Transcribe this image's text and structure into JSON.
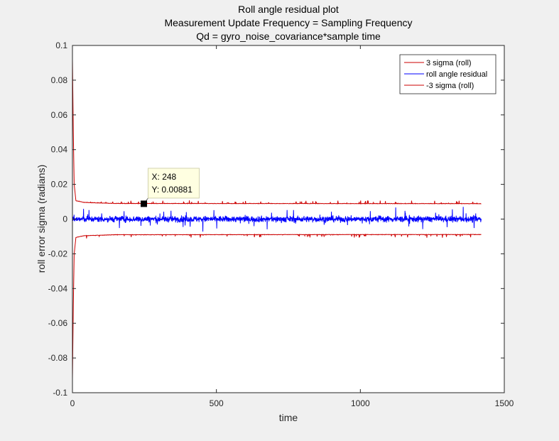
{
  "chart_data": {
    "type": "line",
    "title": [
      "Roll angle residual plot",
      "Measurement Update Frequency = Sampling Frequency",
      "Qd = gyro_noise_covariance*sample time"
    ],
    "xlabel": "time",
    "ylabel": "roll error sigma (radians)",
    "xlim": [
      0,
      1500
    ],
    "ylim": [
      -0.1,
      0.1
    ],
    "xticks": [
      0,
      500,
      1000,
      1500
    ],
    "xtick_labels": [
      "0",
      "500",
      "1000",
      "1500"
    ],
    "yticks": [
      -0.1,
      -0.08,
      -0.06,
      -0.04,
      -0.02,
      0,
      0.02,
      0.04,
      0.06,
      0.08,
      0.1
    ],
    "ytick_labels": [
      "-0.1",
      "-0.08",
      "-0.06",
      "-0.04",
      "-0.02",
      "0",
      "0.02",
      "0.04",
      "0.06",
      "0.08",
      "0.1"
    ],
    "grid": false,
    "legend_position": "top-right",
    "x_end": 1420,
    "series": [
      {
        "name": "3 sigma (roll)",
        "color": "#cc0000",
        "description_points": [
          [
            0,
            0.092
          ],
          [
            3,
            0.05
          ],
          [
            6,
            0.02
          ],
          [
            12,
            0.0105
          ],
          [
            40,
            0.0095
          ],
          [
            150,
            0.0089
          ],
          [
            1420,
            0.0088
          ]
        ],
        "noise_amplitude": 0.0004
      },
      {
        "name": "roll angle residual",
        "color": "#0000ff",
        "center": 0.0,
        "noise_amplitude": 0.003,
        "spike_amplitude": 0.006
      },
      {
        "name": "-3 sigma (roll)",
        "color": "#cc0000",
        "description_points": [
          [
            0,
            -0.092
          ],
          [
            3,
            -0.05
          ],
          [
            6,
            -0.02
          ],
          [
            12,
            -0.0105
          ],
          [
            40,
            -0.0095
          ],
          [
            150,
            -0.0089
          ],
          [
            1420,
            -0.0088
          ]
        ],
        "noise_amplitude": 0.0004
      }
    ],
    "datatip": {
      "x": 248,
      "y": 0.00881,
      "x_label": "X: 248",
      "y_label": "Y: 0.00881"
    }
  }
}
